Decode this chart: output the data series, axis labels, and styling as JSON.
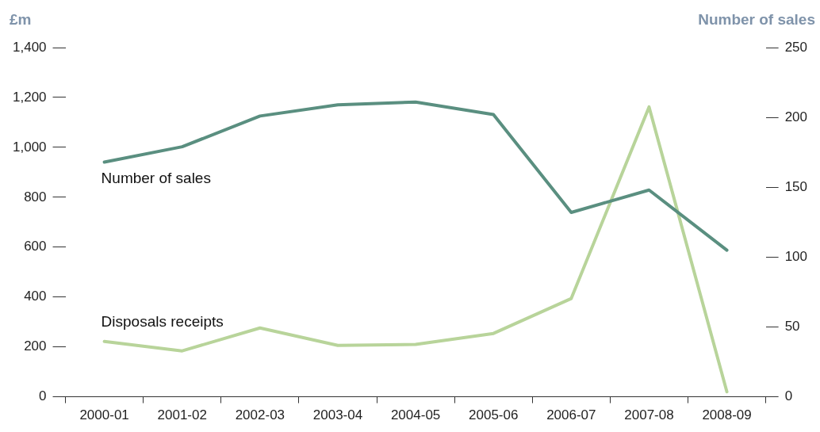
{
  "chart_data": {
    "type": "line",
    "ylabel": "£m",
    "y2label": "Number of sales",
    "categories": [
      "2000-01",
      "2001-02",
      "2002-03",
      "2003-04",
      "2004-05",
      "2005-06",
      "2006-07",
      "2007-08",
      "2008-09"
    ],
    "series": [
      {
        "name": "Number of sales",
        "color": "#5a8f80",
        "axis": "y2",
        "values": [
          168,
          179,
          201,
          209,
          211,
          202,
          132,
          148,
          105
        ]
      },
      {
        "name": "Disposals receipts",
        "color": "#b8d49a",
        "axis": "y",
        "values": [
          222,
          184,
          276,
          206,
          210,
          254,
          394,
          1162,
          20
        ]
      }
    ],
    "ylim": [
      0,
      1400
    ],
    "yticks": [
      0,
      200,
      400,
      600,
      800,
      {
        "value": 1000,
        "label": "1,000"
      },
      {
        "value": 1200,
        "label": "1,200"
      },
      {
        "value": 1400,
        "label": "1,400"
      }
    ],
    "y2lim": [
      0,
      250
    ],
    "y2ticks": [
      0,
      50,
      100,
      150,
      200,
      250
    ],
    "grid": false,
    "legend": false,
    "marker": "none",
    "line_style": "solid"
  }
}
